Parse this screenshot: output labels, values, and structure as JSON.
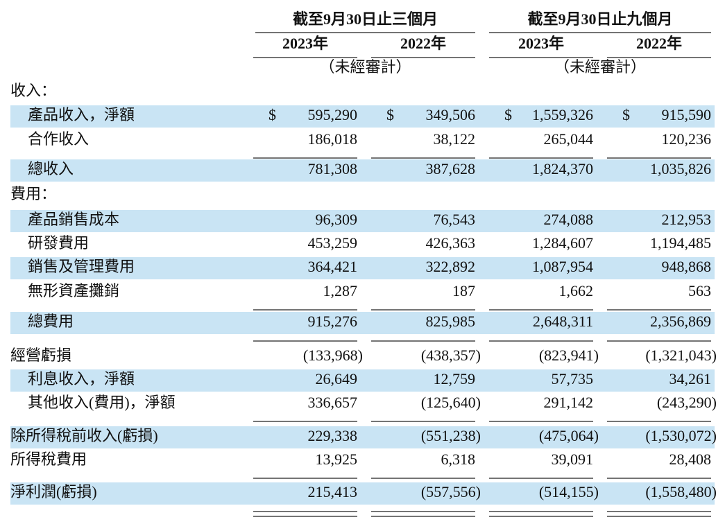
{
  "header": {
    "groups": [
      {
        "title": "截至9月30日止三個月",
        "years": [
          "2023年",
          "2022年"
        ],
        "note": "（未經審計）"
      },
      {
        "title": "截至9月30日止九個月",
        "years": [
          "2023年",
          "2022年"
        ],
        "note": "（未經審計）"
      }
    ]
  },
  "table": {
    "rows": [
      {
        "label": "收入：",
        "values": []
      },
      {
        "label": "產品收入，淨額",
        "currency": "$",
        "values": [
          "595,290",
          "349,506",
          "1,559,326",
          "915,590"
        ]
      },
      {
        "label": "合作收入",
        "values": [
          "186,018",
          "38,122",
          "265,044",
          "120,236"
        ]
      },
      {
        "label": "總收入",
        "values": [
          "781,308",
          "387,628",
          "1,824,370",
          "1,035,826"
        ]
      },
      {
        "label": "費用：",
        "values": []
      },
      {
        "label": "產品銷售成本",
        "values": [
          "96,309",
          "76,543",
          "274,088",
          "212,953"
        ]
      },
      {
        "label": "研發費用",
        "values": [
          "453,259",
          "426,363",
          "1,284,607",
          "1,194,485"
        ]
      },
      {
        "label": "銷售及管理費用",
        "values": [
          "364,421",
          "322,892",
          "1,087,954",
          "948,868"
        ]
      },
      {
        "label": "無形資產攤銷",
        "values": [
          "1,287",
          "187",
          "1,662",
          "563"
        ]
      },
      {
        "label": "總費用",
        "values": [
          "915,276",
          "825,985",
          "2,648,311",
          "2,356,869"
        ]
      },
      {
        "label": "經營虧損",
        "values": [
          "(133,968)",
          "(438,357)",
          "(823,941)",
          "(1,321,043)"
        ]
      },
      {
        "label": "利息收入，淨額",
        "values": [
          "26,649",
          "12,759",
          "57,735",
          "34,261"
        ]
      },
      {
        "label": "其他收入(費用)，淨額",
        "values": [
          "336,657",
          "(125,640)",
          "291,142",
          "(243,290)"
        ]
      },
      {
        "label": "除所得稅前收入(虧損)",
        "values": [
          "229,338",
          "(551,238)",
          "(475,064)",
          "(1,530,072)"
        ]
      },
      {
        "label": "所得稅費用",
        "values": [
          "13,925",
          "6,318",
          "39,091",
          "28,408"
        ]
      },
      {
        "label": "淨利潤(虧損)",
        "values": [
          "215,413",
          "(557,556)",
          "(514,155)",
          "(1,558,480)"
        ]
      }
    ]
  }
}
